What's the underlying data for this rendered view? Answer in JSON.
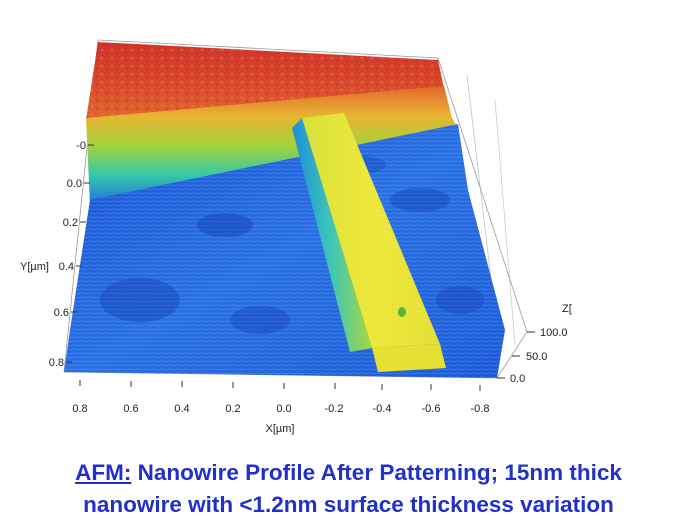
{
  "figure": {
    "y_axis": {
      "label": "Y[µm]",
      "ticks": [
        "-0",
        "0.0",
        "0.2",
        "0.4",
        "0.6",
        "0.8"
      ]
    },
    "x_axis": {
      "label": "X[µm]",
      "ticks": [
        "0.8",
        "0.6",
        "0.4",
        "0.2",
        "0.0",
        "-0.2",
        "-0.4",
        "-0.6",
        "-0.8"
      ]
    },
    "z_axis": {
      "label": "Z[",
      "ticks": [
        "100.0",
        "50.0",
        "0.0"
      ]
    }
  },
  "caption": {
    "prefix": "AFM:",
    "line1_rest": " Nanowire Profile After Patterning; 15nm thick",
    "line2": "nanowire with <1.2nm surface thickness variation"
  },
  "colors": {
    "low": "#1f5fd6",
    "mid": "#35b0d6",
    "wire": "#e6e633",
    "high": "#d43a2e",
    "caption": "#2030c8"
  }
}
